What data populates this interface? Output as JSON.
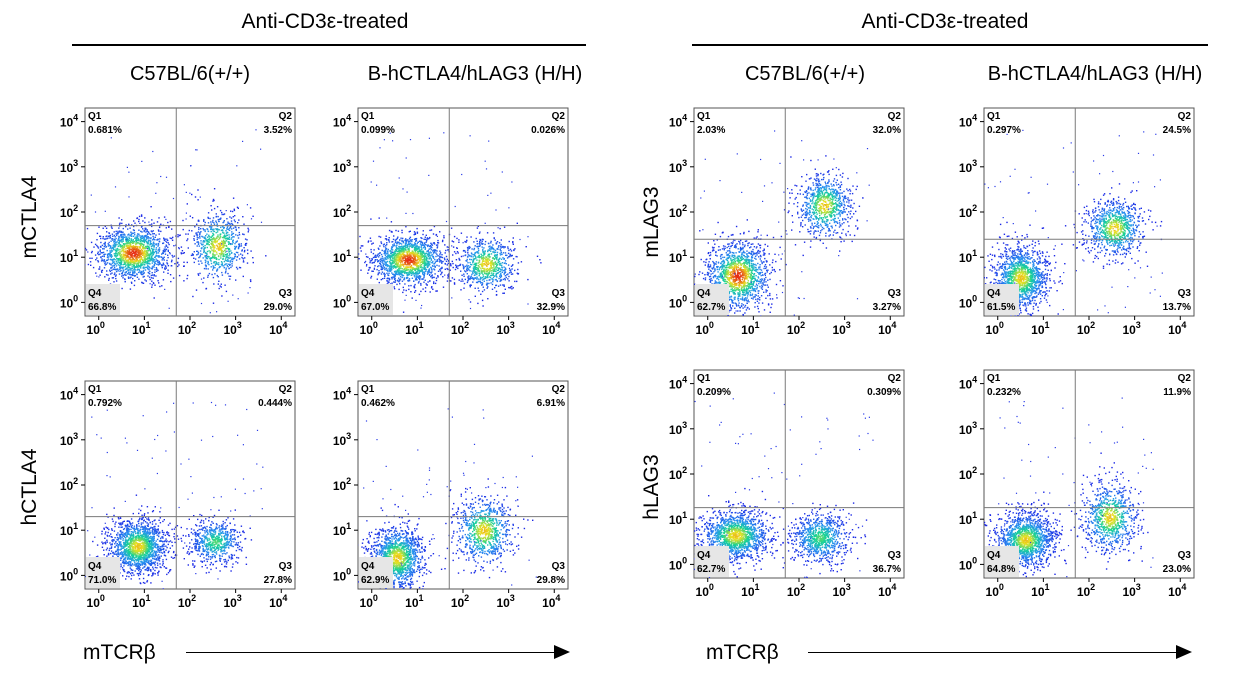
{
  "figure": {
    "left_header": "Anti-CD3ε-treated",
    "right_header": "Anti-CD3ε-treated",
    "left_strains": [
      "C57BL/6(+/+)",
      "B-hCTLA4/hLAG3 (H/H)"
    ],
    "right_strains": [
      "C57BL/6(+/+)",
      "B-hCTLA4/hLAG3 (H/H)"
    ],
    "x_label_left": "mTCRβ",
    "x_label_right": "mTCRβ",
    "row_labels": {
      "ctla_top": "mCTLA4",
      "ctla_bottom": "hCTLA4",
      "lag_top": "mLAG3",
      "lag_bottom": "hLAG3"
    }
  },
  "colors": {
    "low_density": "#1f2fe0",
    "mid_density": "#10c8a0",
    "high_density": "#f0e020",
    "peak_density": "#e82010",
    "gate_line": "#7a7a7a",
    "quadrant_box": "#e6e6e6"
  },
  "chart_data": [
    {
      "type": "scatter",
      "id": "mCTLA4-C57",
      "xlabel": "mTCRβ",
      "ylabel": "mCTLA4",
      "axis_scale": "log",
      "xlim": [
        0.5,
        20000
      ],
      "ylim": [
        0.5,
        20000
      ],
      "ticks": [
        "0",
        "1",
        "2",
        "3",
        "4"
      ],
      "gate": {
        "x": 50,
        "y": 50
      },
      "quadrants": [
        {
          "name": "Q1",
          "percent": "0.681%"
        },
        {
          "name": "Q2",
          "percent": "3.52%"
        },
        {
          "name": "Q3",
          "percent": "29.0%"
        },
        {
          "name": "Q4",
          "percent": "66.8%"
        }
      ],
      "populations": [
        {
          "cx": 0.75,
          "cy": 1.1,
          "sx": 0.4,
          "sy": 0.3,
          "weight": 0.67,
          "peak": "red"
        },
        {
          "cx": 2.6,
          "cy": 1.25,
          "sx": 0.3,
          "sy": 0.38,
          "weight": 0.33,
          "peak": "yellow"
        }
      ]
    },
    {
      "type": "scatter",
      "id": "mCTLA4-H",
      "xlabel": "mTCRβ",
      "ylabel": "mCTLA4",
      "axis_scale": "log",
      "xlim": [
        0.5,
        20000
      ],
      "ylim": [
        0.5,
        20000
      ],
      "ticks": [
        "0",
        "1",
        "2",
        "3",
        "4"
      ],
      "gate": {
        "x": 50,
        "y": 50
      },
      "quadrants": [
        {
          "name": "Q1",
          "percent": "0.099%"
        },
        {
          "name": "Q2",
          "percent": "0.026%"
        },
        {
          "name": "Q3",
          "percent": "32.9%"
        },
        {
          "name": "Q4",
          "percent": "67.0%"
        }
      ],
      "populations": [
        {
          "cx": 0.8,
          "cy": 0.95,
          "sx": 0.4,
          "sy": 0.28,
          "weight": 0.67,
          "peak": "red"
        },
        {
          "cx": 2.5,
          "cy": 0.85,
          "sx": 0.32,
          "sy": 0.3,
          "weight": 0.33,
          "peak": "yellow"
        }
      ]
    },
    {
      "type": "scatter",
      "id": "hCTLA4-C57",
      "xlabel": "mTCRβ",
      "ylabel": "hCTLA4",
      "axis_scale": "log",
      "xlim": [
        0.5,
        20000
      ],
      "ylim": [
        0.5,
        20000
      ],
      "ticks": [
        "0",
        "1",
        "2",
        "3",
        "4"
      ],
      "gate": {
        "x": 50,
        "y": 20
      },
      "quadrants": [
        {
          "name": "Q1",
          "percent": "0.792%"
        },
        {
          "name": "Q2",
          "percent": "0.444%"
        },
        {
          "name": "Q3",
          "percent": "27.8%"
        },
        {
          "name": "Q4",
          "percent": "71.0%"
        }
      ],
      "populations": [
        {
          "cx": 0.85,
          "cy": 0.65,
          "sx": 0.32,
          "sy": 0.3,
          "weight": 0.72,
          "peak": "yellow"
        },
        {
          "cx": 2.55,
          "cy": 0.75,
          "sx": 0.28,
          "sy": 0.25,
          "weight": 0.28,
          "peak": "cyan"
        }
      ]
    },
    {
      "type": "scatter",
      "id": "hCTLA4-H",
      "xlabel": "mTCRβ",
      "ylabel": "hCTLA4",
      "axis_scale": "log",
      "xlim": [
        0.5,
        20000
      ],
      "ylim": [
        0.5,
        20000
      ],
      "ticks": [
        "0",
        "1",
        "2",
        "3",
        "4"
      ],
      "gate": {
        "x": 50,
        "y": 20
      },
      "quadrants": [
        {
          "name": "Q1",
          "percent": "0.462%"
        },
        {
          "name": "Q2",
          "percent": "6.91%"
        },
        {
          "name": "Q3",
          "percent": "29.8%"
        },
        {
          "name": "Q4",
          "percent": "62.9%"
        }
      ],
      "populations": [
        {
          "cx": 0.55,
          "cy": 0.4,
          "sx": 0.3,
          "sy": 0.35,
          "weight": 0.63,
          "peak": "yellow"
        },
        {
          "cx": 2.45,
          "cy": 1.0,
          "sx": 0.32,
          "sy": 0.38,
          "weight": 0.37,
          "peak": "yellow"
        }
      ]
    },
    {
      "type": "scatter",
      "id": "mLAG3-C57",
      "xlabel": "mTCRβ",
      "ylabel": "mLAG3",
      "axis_scale": "log",
      "xlim": [
        0.5,
        20000
      ],
      "ylim": [
        0.5,
        20000
      ],
      "ticks": [
        "0",
        "1",
        "2",
        "3",
        "4"
      ],
      "gate": {
        "x": 50,
        "y": 25
      },
      "quadrants": [
        {
          "name": "Q1",
          "percent": "2.03%"
        },
        {
          "name": "Q2",
          "percent": "32.0%"
        },
        {
          "name": "Q3",
          "percent": "3.27%"
        },
        {
          "name": "Q4",
          "percent": "62.7%"
        }
      ],
      "populations": [
        {
          "cx": 0.65,
          "cy": 0.6,
          "sx": 0.35,
          "sy": 0.38,
          "weight": 0.63,
          "peak": "red"
        },
        {
          "cx": 2.55,
          "cy": 2.15,
          "sx": 0.3,
          "sy": 0.35,
          "weight": 0.35,
          "peak": "yellow"
        }
      ]
    },
    {
      "type": "scatter",
      "id": "mLAG3-H",
      "xlabel": "mTCRβ",
      "ylabel": "mLAG3",
      "axis_scale": "log",
      "xlim": [
        0.5,
        20000
      ],
      "ylim": [
        0.5,
        20000
      ],
      "ticks": [
        "0",
        "1",
        "2",
        "3",
        "4"
      ],
      "gate": {
        "x": 50,
        "y": 25
      },
      "quadrants": [
        {
          "name": "Q1",
          "percent": "0.297%"
        },
        {
          "name": "Q2",
          "percent": "24.5%"
        },
        {
          "name": "Q3",
          "percent": "13.7%"
        },
        {
          "name": "Q4",
          "percent": "61.5%"
        }
      ],
      "populations": [
        {
          "cx": 0.5,
          "cy": 0.55,
          "sx": 0.3,
          "sy": 0.35,
          "weight": 0.62,
          "peak": "yellow"
        },
        {
          "cx": 2.55,
          "cy": 1.65,
          "sx": 0.32,
          "sy": 0.32,
          "weight": 0.38,
          "peak": "yellow"
        }
      ]
    },
    {
      "type": "scatter",
      "id": "hLAG3-C57",
      "xlabel": "mTCRβ",
      "ylabel": "hLAG3",
      "axis_scale": "log",
      "xlim": [
        0.5,
        20000
      ],
      "ylim": [
        0.5,
        20000
      ],
      "ticks": [
        "0",
        "1",
        "2",
        "3",
        "4"
      ],
      "gate": {
        "x": 50,
        "y": 18
      },
      "quadrants": [
        {
          "name": "Q1",
          "percent": "0.209%"
        },
        {
          "name": "Q2",
          "percent": "0.309%"
        },
        {
          "name": "Q3",
          "percent": "36.7%"
        },
        {
          "name": "Q4",
          "percent": "62.7%"
        }
      ],
      "populations": [
        {
          "cx": 0.6,
          "cy": 0.65,
          "sx": 0.38,
          "sy": 0.28,
          "weight": 0.63,
          "peak": "yellow"
        },
        {
          "cx": 2.45,
          "cy": 0.6,
          "sx": 0.32,
          "sy": 0.28,
          "weight": 0.37,
          "peak": "cyan"
        }
      ]
    },
    {
      "type": "scatter",
      "id": "hLAG3-H",
      "xlabel": "mTCRβ",
      "ylabel": "hLAG3",
      "axis_scale": "log",
      "xlim": [
        0.5,
        20000
      ],
      "ylim": [
        0.5,
        20000
      ],
      "ticks": [
        "0",
        "1",
        "2",
        "3",
        "4"
      ],
      "gate": {
        "x": 50,
        "y": 18
      },
      "quadrants": [
        {
          "name": "Q1",
          "percent": "0.232%"
        },
        {
          "name": "Q2",
          "percent": "11.9%"
        },
        {
          "name": "Q3",
          "percent": "23.0%"
        },
        {
          "name": "Q4",
          "percent": "64.8%"
        }
      ],
      "populations": [
        {
          "cx": 0.6,
          "cy": 0.55,
          "sx": 0.32,
          "sy": 0.3,
          "weight": 0.64,
          "peak": "yellow"
        },
        {
          "cx": 2.45,
          "cy": 1.05,
          "sx": 0.3,
          "sy": 0.38,
          "weight": 0.36,
          "peak": "yellow"
        }
      ]
    }
  ]
}
